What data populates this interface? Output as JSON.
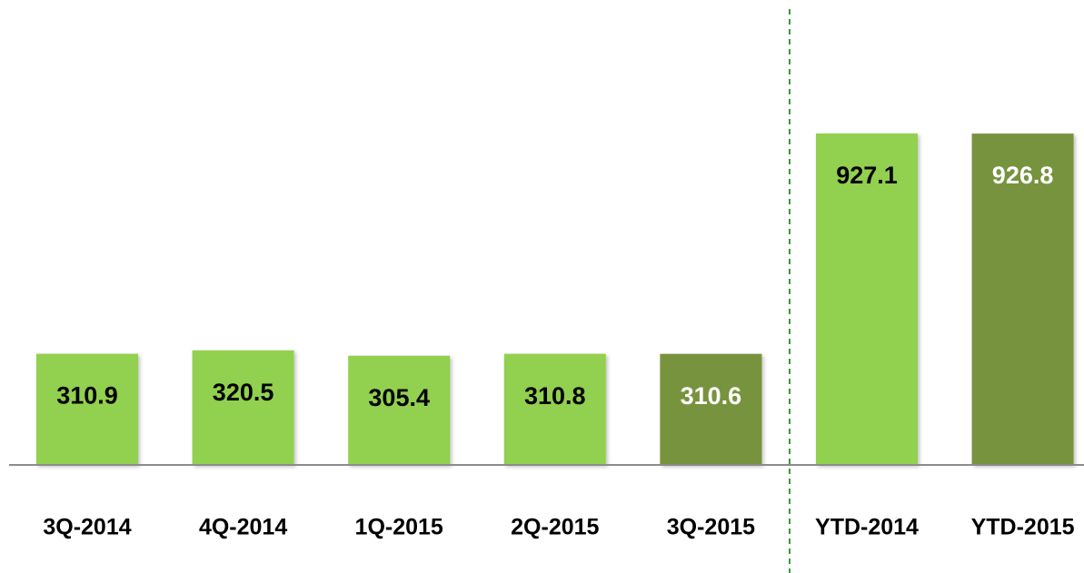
{
  "chart_data": {
    "type": "bar",
    "categories": [
      "3Q-2014",
      "4Q-2014",
      "1Q-2015",
      "2Q-2015",
      "3Q-2015",
      "YTD-2014",
      "YTD-2015"
    ],
    "values": [
      310.9,
      320.5,
      305.4,
      310.8,
      310.6,
      927.1,
      926.8
    ],
    "colors": [
      "#92d050",
      "#92d050",
      "#92d050",
      "#92d050",
      "#77933c",
      "#92d050",
      "#77933c"
    ]
  }
}
